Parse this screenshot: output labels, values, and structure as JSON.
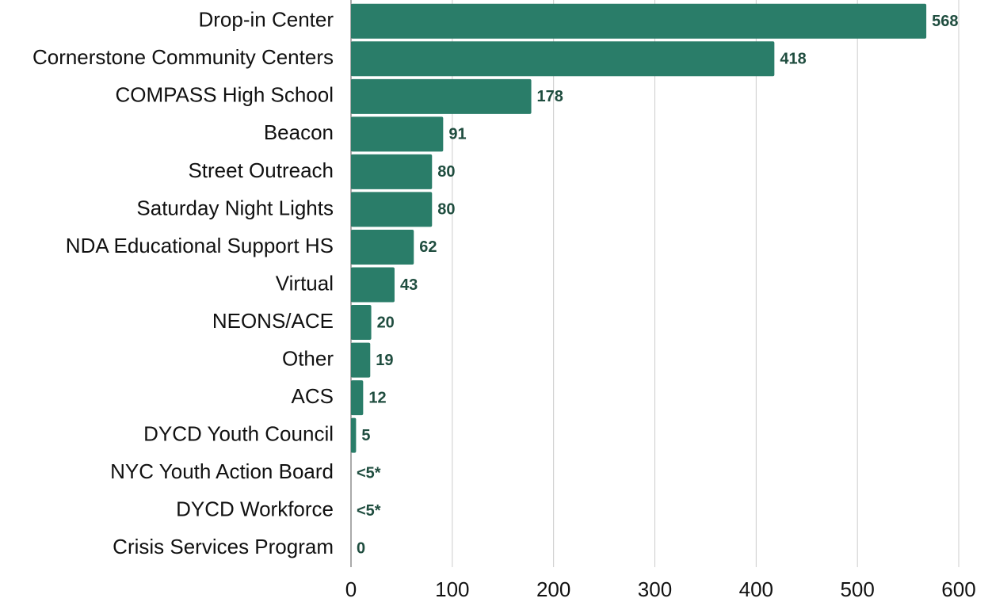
{
  "chart_data": {
    "type": "bar",
    "orientation": "horizontal",
    "categories": [
      "Drop-in Center",
      "Cornerstone Community Centers",
      "COMPASS High School",
      "Beacon",
      "Street Outreach",
      "Saturday Night Lights",
      "NDA Educational Support HS",
      "Virtual",
      "NEONS/ACE",
      "Other",
      "ACS",
      "DYCD Youth Council",
      "NYC Youth Action Board",
      "DYCD Workforce",
      "Crisis Services Program"
    ],
    "values": [
      568,
      418,
      178,
      91,
      80,
      80,
      62,
      43,
      20,
      19,
      12,
      5,
      null,
      null,
      0
    ],
    "value_labels": [
      "568",
      "418",
      "178",
      "91",
      "80",
      "80",
      "62",
      "43",
      "20",
      "19",
      "12",
      "5",
      "<5*",
      "<5*",
      "0"
    ],
    "color": "#2a7d69",
    "xlim": [
      0,
      600
    ],
    "xticks": [
      0,
      100,
      200,
      300,
      400,
      500,
      600
    ],
    "grid": true
  }
}
